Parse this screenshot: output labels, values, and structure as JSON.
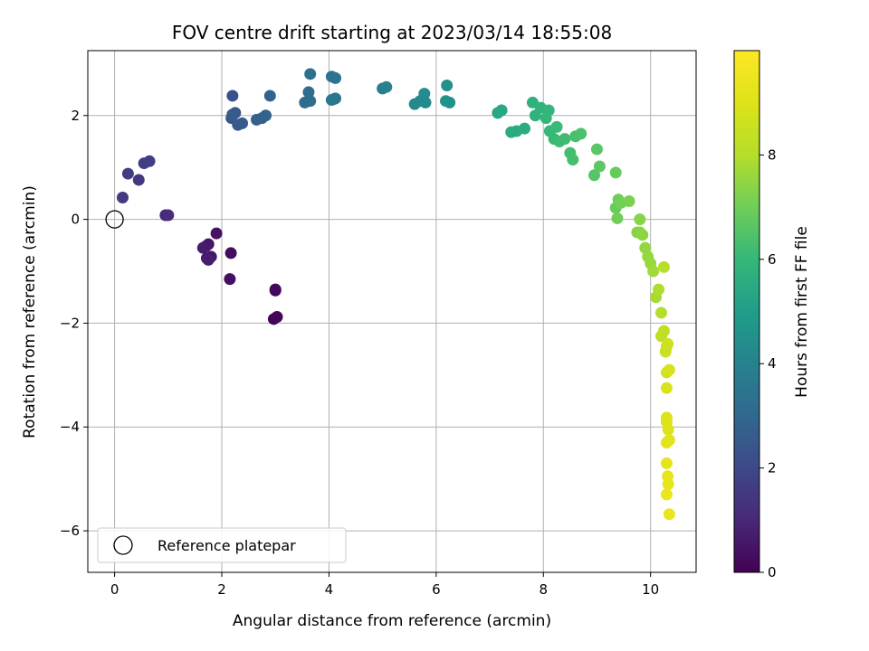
{
  "chart_data": {
    "type": "scatter",
    "title": "FOV centre drift starting at 2023/03/14 18:55:08",
    "xlabel": "Angular distance from reference (arcmin)",
    "ylabel": "Rotation from reference (arcmin)",
    "xlim": [
      -0.5,
      10.85
    ],
    "ylim": [
      -6.8,
      3.25
    ],
    "xticks": [
      0,
      2,
      4,
      6,
      8,
      10
    ],
    "yticks": [
      -6,
      -4,
      -2,
      0,
      2
    ],
    "grid": true,
    "legend": {
      "placement": "lower-left",
      "entries": [
        "Reference platepar"
      ]
    },
    "colorbar": {
      "label": "Hours from first FF file",
      "range": [
        0,
        10
      ],
      "ticks": [
        0,
        2,
        4,
        6,
        8
      ],
      "colormap": "viridis"
    },
    "reference_point": {
      "x": 0,
      "y": 0
    },
    "x": [
      3.0,
      2.97,
      3.03,
      3.0,
      2.17,
      2.15,
      1.9,
      1.75,
      1.8,
      1.7,
      1.72,
      1.65,
      1.75,
      0.95,
      1.0,
      0.45,
      0.15,
      0.55,
      0.65,
      0.25,
      2.2,
      2.18,
      2.25,
      2.3,
      2.38,
      2.2,
      2.65,
      2.75,
      2.82,
      2.9,
      3.55,
      3.65,
      3.62,
      3.65,
      4.05,
      4.12,
      4.1,
      4.05,
      4.12,
      5.0,
      5.07,
      5.6,
      5.7,
      5.8,
      5.78,
      6.2,
      6.25,
      6.18,
      7.15,
      7.22,
      7.4,
      7.5,
      7.65,
      7.8,
      7.85,
      7.95,
      8.1,
      8.05,
      8.12,
      8.2,
      8.25,
      8.3,
      8.4,
      8.5,
      8.55,
      8.6,
      8.7,
      8.95,
      9.0,
      9.05,
      9.35,
      9.35,
      9.4,
      9.38,
      9.45,
      9.6,
      9.75,
      9.8,
      9.8,
      9.85,
      9.9,
      9.95,
      10.0,
      10.05,
      10.1,
      10.15,
      10.2,
      10.25,
      10.2,
      10.25,
      10.3,
      10.28,
      10.32,
      10.3,
      10.35,
      10.3,
      10.3,
      10.3,
      10.33,
      10.3,
      10.35,
      10.3,
      10.32,
      10.33,
      10.3,
      10.35
    ],
    "y": [
      -1.35,
      -1.92,
      -1.88,
      -1.37,
      -0.65,
      -1.15,
      -0.27,
      -0.48,
      -0.72,
      -0.52,
      -0.75,
      -0.55,
      -0.78,
      0.08,
      0.08,
      0.76,
      0.42,
      1.08,
      1.12,
      0.88,
      2.38,
      1.95,
      2.05,
      1.82,
      1.85,
      2.02,
      1.92,
      1.95,
      2.0,
      2.38,
      2.25,
      2.28,
      2.45,
      2.8,
      2.75,
      2.72,
      2.32,
      2.3,
      2.33,
      2.52,
      2.55,
      2.22,
      2.28,
      2.25,
      2.42,
      2.58,
      2.25,
      2.28,
      2.05,
      2.1,
      1.68,
      1.7,
      1.75,
      2.25,
      2.0,
      2.15,
      2.1,
      1.95,
      1.7,
      1.55,
      1.78,
      1.5,
      1.55,
      1.28,
      1.15,
      1.6,
      1.65,
      0.85,
      1.35,
      1.02,
      0.9,
      0.22,
      0.38,
      0.02,
      0.32,
      0.35,
      -0.25,
      0.0,
      -0.25,
      -0.3,
      -0.55,
      -0.72,
      -0.85,
      -1.0,
      -1.5,
      -1.35,
      -1.8,
      -0.92,
      -2.25,
      -2.15,
      -2.45,
      -2.55,
      -2.4,
      -2.95,
      -2.9,
      -3.25,
      -3.82,
      -3.9,
      -4.05,
      -4.3,
      -4.25,
      -4.7,
      -4.95,
      -5.1,
      -5.3,
      -5.68
    ],
    "hours": [
      0.05,
      0.1,
      0.15,
      0.2,
      0.3,
      0.35,
      0.45,
      0.5,
      0.55,
      0.6,
      0.65,
      0.7,
      0.75,
      1.1,
      1.15,
      1.5,
      1.55,
      1.65,
      1.7,
      1.6,
      2.3,
      2.4,
      2.45,
      2.5,
      2.55,
      2.6,
      2.7,
      2.75,
      2.8,
      2.85,
      3.1,
      3.15,
      3.2,
      3.25,
      3.4,
      3.45,
      3.5,
      3.55,
      3.6,
      3.9,
      3.95,
      4.2,
      4.25,
      4.3,
      4.35,
      4.5,
      4.55,
      4.6,
      5.3,
      5.35,
      5.5,
      5.55,
      5.6,
      5.75,
      5.8,
      5.85,
      5.9,
      5.95,
      6.0,
      6.05,
      6.1,
      6.15,
      6.2,
      6.25,
      6.3,
      6.35,
      6.4,
      6.6,
      6.65,
      6.7,
      6.85,
      6.9,
      6.95,
      7.0,
      7.05,
      7.15,
      7.3,
      7.35,
      7.4,
      7.45,
      7.5,
      7.55,
      7.6,
      7.7,
      7.8,
      7.9,
      8.0,
      8.05,
      8.2,
      8.3,
      8.4,
      8.5,
      8.6,
      8.7,
      8.8,
      8.9,
      9.0,
      9.05,
      9.1,
      9.15,
      9.2,
      9.25,
      9.3,
      9.35,
      9.4,
      9.45
    ]
  }
}
